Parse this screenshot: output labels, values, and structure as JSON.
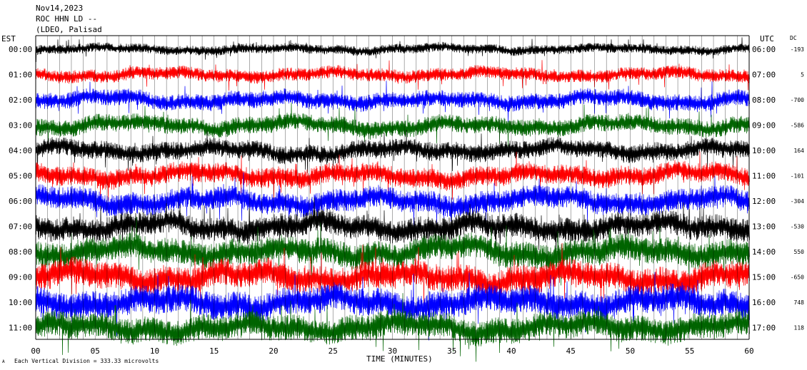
{
  "header": {
    "date": "Nov14,2023",
    "station": "ROC HHN LD --",
    "channel": "(LDEO, Palisad"
  },
  "chart_data": {
    "type": "line",
    "title": "",
    "left_axis_title": "EST",
    "right_axis_title": "UTC",
    "dc_title": "DC",
    "xlabel": "TIME (MINUTES)",
    "footer": "Each Vertical Division =  333.33 microvolts",
    "xlim": [
      0,
      60
    ],
    "x_tick_labels": [
      "00",
      "05",
      "10",
      "15",
      "20",
      "25",
      "30",
      "35",
      "40",
      "45",
      "50",
      "55",
      "60"
    ],
    "x_tick_values": [
      0,
      5,
      10,
      15,
      20,
      25,
      30,
      35,
      40,
      45,
      50,
      55,
      60
    ],
    "colors": {
      "black": "#000000",
      "red": "#ff0000",
      "blue": "#0000ff",
      "green": "#006400"
    },
    "series": [
      {
        "est": "00:00",
        "utc": "06:00",
        "dc": "-193",
        "color": "#000000",
        "amp": 0.55
      },
      {
        "est": "01:00",
        "utc": "07:00",
        "dc": "5",
        "color": "#ff0000",
        "amp": 0.75
      },
      {
        "est": "02:00",
        "utc": "08:00",
        "dc": "-700",
        "color": "#0000ff",
        "amp": 0.95
      },
      {
        "est": "03:00",
        "utc": "09:00",
        "dc": "-586",
        "color": "#006400",
        "amp": 1.0
      },
      {
        "est": "04:00",
        "utc": "10:00",
        "dc": "164",
        "color": "#000000",
        "amp": 1.05
      },
      {
        "est": "05:00",
        "utc": "11:00",
        "dc": "-101",
        "color": "#ff0000",
        "amp": 1.15
      },
      {
        "est": "06:00",
        "utc": "12:00",
        "dc": "-304",
        "color": "#0000ff",
        "amp": 1.3
      },
      {
        "est": "07:00",
        "utc": "13:00",
        "dc": "-530",
        "color": "#000000",
        "amp": 1.4
      },
      {
        "est": "08:00",
        "utc": "14:00",
        "dc": "550",
        "color": "#006400",
        "amp": 1.5
      },
      {
        "est": "09:00",
        "utc": "15:00",
        "dc": "-650",
        "color": "#ff0000",
        "amp": 1.6
      },
      {
        "est": "10:00",
        "utc": "16:00",
        "dc": "748",
        "color": "#0000ff",
        "amp": 1.6
      },
      {
        "est": "11:00",
        "utc": "17:00",
        "dc": "118",
        "color": "#006400",
        "amp": 1.5
      }
    ]
  }
}
